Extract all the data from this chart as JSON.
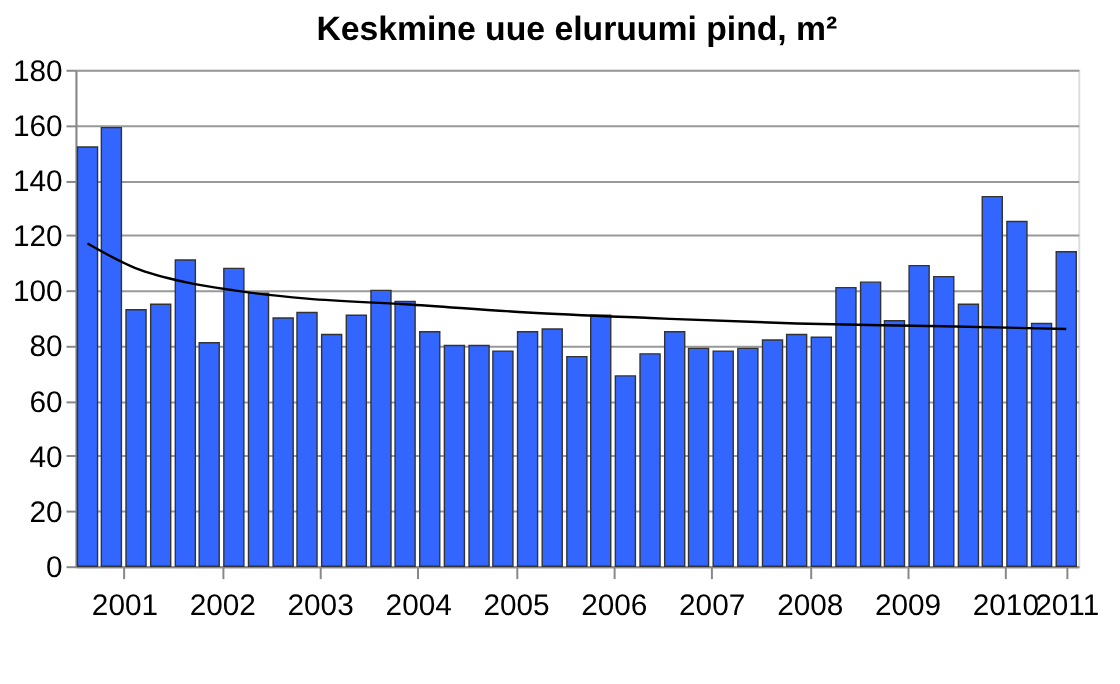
{
  "chart_data": {
    "type": "bar",
    "title": "Keskmine uue eluruumi pind, m²",
    "x": [
      "2001-02-15",
      "2001-05-15",
      "2001-08-15",
      "2001-11-15",
      "2002-02-15",
      "2002-05-15",
      "2002-08-15",
      "2002-11-15",
      "2003-02-15",
      "2003-05-15",
      "2003-08-15",
      "2003-11-15",
      "2004-02-15",
      "2004-05-15",
      "2004-08-15",
      "2004-11-15",
      "2005-02-15",
      "2005-05-15",
      "2005-08-15",
      "2005-11-15",
      "2006-02-15",
      "2006-05-15",
      "2006-08-15",
      "2006-11-15",
      "2007-02-15",
      "2007-05-15",
      "2007-08-15",
      "2007-11-15",
      "2008-02-15",
      "2008-05-15",
      "2008-08-15",
      "2008-11-15",
      "2009-02-15",
      "2009-05-15",
      "2009-08-15",
      "2009-11-15",
      "2010-02-15",
      "2010-05-15",
      "2010-08-15",
      "2010-11-15",
      "2011-02-15"
    ],
    "series": [
      {
        "color": "#3366ff",
        "values": [
          152,
          159,
          93,
          95,
          111,
          81,
          108,
          99,
          90,
          92,
          84,
          91,
          100,
          96,
          85,
          80,
          80,
          78,
          85,
          86,
          76,
          91,
          69,
          77,
          85,
          79,
          78,
          79,
          82,
          84,
          83,
          101,
          103,
          89,
          109,
          105,
          95,
          134,
          125,
          88,
          114
        ]
      },
      {
        "type": "line",
        "color": "#000000",
        "x": [
          "2001-02-15",
          "2001-08-15",
          "2002-02-15",
          "2002-08-15",
          "2003-05-15",
          "2004-05-15",
          "2005-08-15",
          "2006-11-15",
          "2008-05-15",
          "2009-11-15",
          "2011-02-15"
        ],
        "values": [
          117,
          108,
          103,
          100,
          97,
          95,
          92,
          90,
          88,
          87,
          86
        ]
      }
    ],
    "xlim": [
      "2001-01-01",
      "2011-04-01"
    ],
    "xticks": [
      {
        "value": "2001-07-01",
        "label": "2001"
      },
      {
        "value": "2002-07-01",
        "label": "2002"
      },
      {
        "value": "2003-07-01",
        "label": "2003"
      },
      {
        "value": "2004-07-01",
        "label": "2004"
      },
      {
        "value": "2005-07-01",
        "label": "2005"
      },
      {
        "value": "2006-07-01",
        "label": "2006"
      },
      {
        "value": "2007-07-01",
        "label": "2007"
      },
      {
        "value": "2008-07-01",
        "label": "2008"
      },
      {
        "value": "2009-07-01",
        "label": "2009"
      },
      {
        "value": "2010-07-01",
        "label": "2010"
      },
      {
        "value": "2011-02-15",
        "label": "2011"
      }
    ],
    "ylim": [
      0,
      180
    ],
    "yticks": [
      0,
      20,
      40,
      60,
      80,
      100,
      120,
      140,
      160,
      180
    ],
    "grid": "y"
  }
}
